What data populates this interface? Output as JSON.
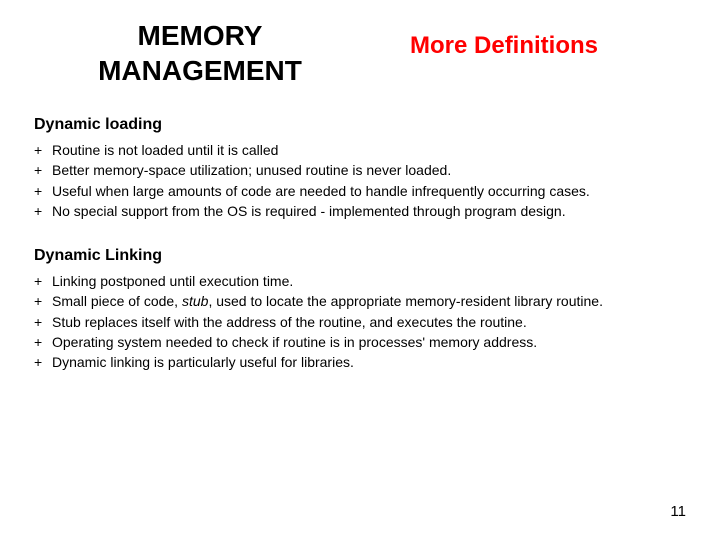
{
  "header": {
    "left_title": "MEMORY\nMANAGEMENT",
    "right_title": "More Definitions"
  },
  "sections": [
    {
      "heading": "Dynamic loading",
      "items": [
        "Routine is not loaded until it is called",
        "Better memory-space utilization; unused routine is never loaded.",
        "Useful when large amounts of code are needed to handle infrequently occurring cases.",
        "No special support from the OS is required - implemented through program design."
      ]
    },
    {
      "heading": "Dynamic Linking",
      "items": [
        "Linking postponed until execution time.",
        "Small piece of code, stub, used to locate the appropriate memory-resident library routine.",
        "Stub replaces itself with the address of the routine, and executes the routine.",
        "Operating system needed to check if routine is in processes' memory address.",
        "Dynamic linking is particularly useful for libraries."
      ]
    }
  ],
  "page_number": "11",
  "bullet_symbol": "+",
  "italic_words": [
    "stub"
  ]
}
